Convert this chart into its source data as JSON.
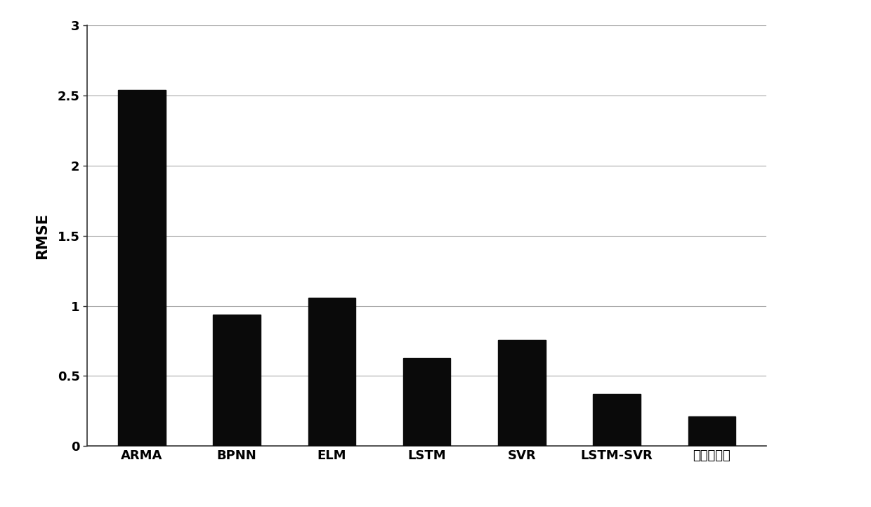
{
  "categories": [
    "ARMA",
    "BPNN",
    "ELM",
    "LSTM",
    "SVR",
    "LSTM-SVR",
    "本发明方法"
  ],
  "values": [
    2.54,
    0.94,
    1.06,
    0.63,
    0.76,
    0.37,
    0.21
  ],
  "bar_color": "#0a0a0a",
  "ylabel": "RMSE",
  "ylim": [
    0,
    3
  ],
  "yticks": [
    0,
    0.5,
    1,
    1.5,
    2,
    2.5,
    3
  ],
  "ytick_labels": [
    "0",
    "0.5",
    "1",
    "1.5",
    "2",
    "2.5",
    "3"
  ],
  "background_color": "#ffffff",
  "grid_color": "#aaaaaa",
  "bar_width": 0.5,
  "ylabel_fontsize": 15,
  "tick_fontsize": 13
}
